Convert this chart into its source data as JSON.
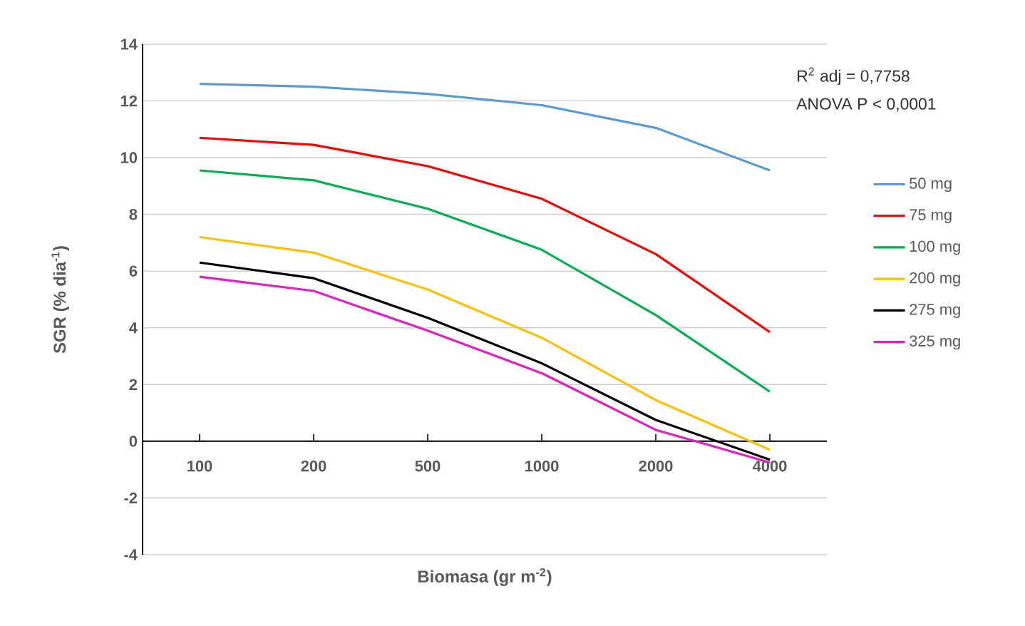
{
  "chart_data": {
    "type": "line",
    "xlabel": "Biomasa (gr m$^{-2}$)",
    "ylabel": "SGR (% dia$^{-1}$)",
    "annotations": [
      "R$^{2}$ adj = 0,7758",
      "ANOVA P < 0,0001"
    ],
    "categories": [
      "100",
      "200",
      "500",
      "1000",
      "2000",
      "4000"
    ],
    "ylim": [
      -4,
      14
    ],
    "yticks": [
      -4,
      -2,
      0,
      2,
      4,
      6,
      8,
      10,
      12,
      14
    ],
    "grid": "y",
    "legend": "right",
    "marker": "none",
    "line_style": "solid",
    "series": [
      {
        "name": "50 mg",
        "color": "#5b9bd5",
        "values": [
          12.6,
          12.5,
          12.25,
          11.85,
          11.05,
          9.55
        ]
      },
      {
        "name": "75 mg",
        "color": "#ff0000",
        "values": [
          10.7,
          10.45,
          9.7,
          8.55,
          6.6,
          3.85
        ]
      },
      {
        "name": "100 mg",
        "color": "#00b050",
        "values": [
          9.55,
          9.2,
          8.2,
          6.75,
          4.45,
          1.75
        ]
      },
      {
        "name": "200 mg",
        "color": "#ffc000",
        "values": [
          7.2,
          6.65,
          5.35,
          3.65,
          1.45,
          -0.3
        ]
      },
      {
        "name": "275 mg",
        "color": "#000000",
        "values": [
          6.3,
          5.75,
          4.35,
          2.75,
          0.75,
          -0.65
        ]
      },
      {
        "name": "325 mg",
        "color": "#e020c0",
        "values": [
          5.8,
          5.3,
          3.9,
          2.4,
          0.4,
          -0.75
        ]
      }
    ]
  }
}
